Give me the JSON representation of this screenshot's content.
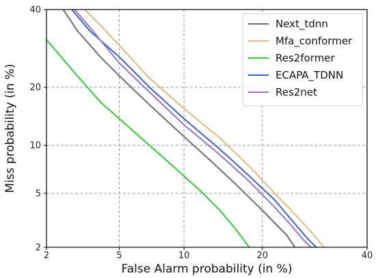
{
  "chart_data": {
    "type": "line",
    "chart_kind": "DET curve",
    "scale": "probit",
    "xlabel": "False Alarm probability (in %)",
    "ylabel": "Miss probability (in %)",
    "xlim": [
      2,
      40
    ],
    "ylim": [
      2,
      40
    ],
    "xticks": [
      2,
      5,
      10,
      20,
      40
    ],
    "yticks": [
      2,
      5,
      10,
      20,
      40
    ],
    "grid": true,
    "legend_position": "top-right",
    "series": [
      {
        "name": "Next_tdnn",
        "color": "#6b6b6b",
        "points": [
          [
            2.5,
            40
          ],
          [
            3,
            34
          ],
          [
            4,
            27
          ],
          [
            5,
            22.5
          ],
          [
            7,
            16.5
          ],
          [
            10,
            11.2
          ],
          [
            13,
            8
          ],
          [
            16,
            5.8
          ],
          [
            20,
            3.8
          ],
          [
            24,
            2.5
          ],
          [
            25.5,
            2
          ]
        ]
      },
      {
        "name": "Mfa_conformer",
        "color": "#e0b97e",
        "points": [
          [
            3.3,
            40
          ],
          [
            4,
            35.5
          ],
          [
            5,
            30
          ],
          [
            7,
            22
          ],
          [
            10,
            15.8
          ],
          [
            14,
            11
          ],
          [
            18,
            7.5
          ],
          [
            22,
            5
          ],
          [
            26,
            3.4
          ],
          [
            29,
            2.5
          ],
          [
            31,
            2
          ]
        ]
      },
      {
        "name": "Res2former",
        "color": "#2ecc2e",
        "points": [
          [
            2,
            31.5
          ],
          [
            3,
            22.5
          ],
          [
            4,
            17
          ],
          [
            5,
            14
          ],
          [
            7,
            10
          ],
          [
            10,
            6.5
          ],
          [
            12,
            5
          ],
          [
            14,
            3.8
          ],
          [
            16,
            2.8
          ],
          [
            18,
            2
          ]
        ]
      },
      {
        "name": "ECAPA_TDNN",
        "color": "#3a5fcd",
        "points": [
          [
            2.8,
            40
          ],
          [
            3.5,
            34
          ],
          [
            5,
            27
          ],
          [
            7,
            20
          ],
          [
            10,
            14
          ],
          [
            14,
            9.5
          ],
          [
            18,
            6.5
          ],
          [
            22,
            4.5
          ],
          [
            25,
            3.2
          ],
          [
            28,
            2.3
          ],
          [
            29.5,
            2
          ]
        ]
      },
      {
        "name": "Res2net",
        "color": "#9370db",
        "points": [
          [
            2.9,
            40
          ],
          [
            3.5,
            35
          ],
          [
            5,
            25.5
          ],
          [
            7,
            19
          ],
          [
            10,
            13
          ],
          [
            14,
            8.8
          ],
          [
            18,
            6
          ],
          [
            22,
            4
          ],
          [
            25,
            2.9
          ],
          [
            27,
            2.3
          ],
          [
            28.5,
            2
          ]
        ]
      }
    ]
  }
}
